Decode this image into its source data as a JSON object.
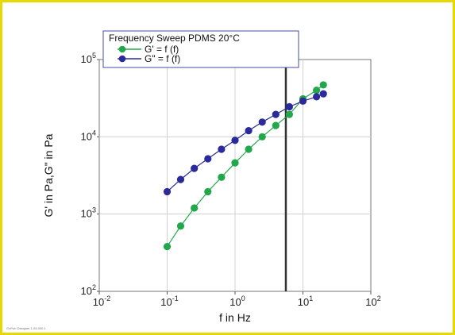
{
  "chart_data": {
    "type": "scatter",
    "legend_title": "Frequency Sweep PDMS 20°C",
    "xlabel": "f in Hz",
    "ylabel": "G' in Pa,G\" in Pa",
    "x_scale": "log",
    "y_scale": "log",
    "xlim": [
      0.01,
      100
    ],
    "ylim": [
      100,
      100000
    ],
    "x_tick_exponents": [
      "-2",
      "-1",
      "0",
      "1",
      "2"
    ],
    "y_tick_exponents": [
      "2",
      "3",
      "4",
      "5"
    ],
    "tick_base": "10",
    "grid": true,
    "legend_position": "top-left",
    "vertical_marker_x": 5.6,
    "series": [
      {
        "name": "G' = f (f)",
        "color": "#22a84a",
        "x": [
          0.1,
          0.158,
          0.251,
          0.398,
          0.631,
          1.0,
          1.585,
          2.512,
          3.981,
          6.31,
          10,
          15.85,
          20
        ],
        "values": [
          380,
          700,
          1200,
          1950,
          3000,
          4600,
          6900,
          10000,
          14000,
          19500,
          31000,
          40000,
          47000
        ]
      },
      {
        "name": "G\" = f (f)",
        "color": "#2a2a9a",
        "x": [
          0.1,
          0.158,
          0.251,
          0.398,
          0.631,
          1.0,
          1.585,
          2.512,
          3.981,
          6.31,
          10,
          15.85,
          20
        ],
        "values": [
          1950,
          2800,
          3900,
          5200,
          6900,
          9000,
          12000,
          15500,
          19500,
          24500,
          29000,
          33000,
          36000
        ]
      }
    ]
  },
  "footnote": "GoPub Designer 1.04.000.1"
}
